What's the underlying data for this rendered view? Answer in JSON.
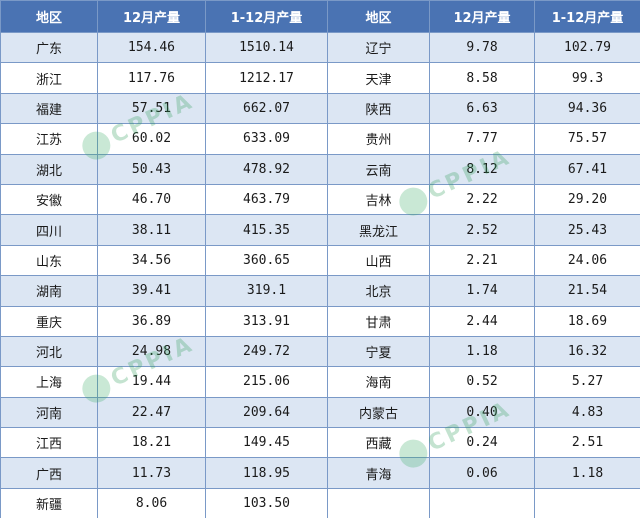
{
  "table": {
    "headers": [
      "地区",
      "12月产量",
      "1-12月产量",
      "地区",
      "12月产量",
      "1-12月产量"
    ],
    "rows": [
      [
        "广东",
        "154.46",
        "1510.14",
        "辽宁",
        "9.78",
        "102.79"
      ],
      [
        "浙江",
        "117.76",
        "1212.17",
        "天津",
        "8.58",
        "99.3"
      ],
      [
        "福建",
        "57.51",
        "662.07",
        "陕西",
        "6.63",
        "94.36"
      ],
      [
        "江苏",
        "60.02",
        "633.09",
        "贵州",
        "7.77",
        "75.57"
      ],
      [
        "湖北",
        "50.43",
        "478.92",
        "云南",
        "8.12",
        "67.41"
      ],
      [
        "安徽",
        "46.70",
        "463.79",
        "吉林",
        "2.22",
        "29.20"
      ],
      [
        "四川",
        "38.11",
        "415.35",
        "黑龙江",
        "2.52",
        "25.43"
      ],
      [
        "山东",
        "34.56",
        "360.65",
        "山西",
        "2.21",
        "24.06"
      ],
      [
        "湖南",
        "39.41",
        "319.1",
        "北京",
        "1.74",
        "21.54"
      ],
      [
        "重庆",
        "36.89",
        "313.91",
        "甘肃",
        "2.44",
        "18.69"
      ],
      [
        "河北",
        "24.98",
        "249.72",
        "宁夏",
        "1.18",
        "16.32"
      ],
      [
        "上海",
        "19.44",
        "215.06",
        "海南",
        "0.52",
        "5.27"
      ],
      [
        "河南",
        "22.47",
        "209.64",
        "内蒙古",
        "0.40",
        "4.83"
      ],
      [
        "江西",
        "18.21",
        "149.45",
        "西藏",
        "0.24",
        "2.51"
      ],
      [
        "广西",
        "11.73",
        "118.95",
        "青海",
        "0.06",
        "1.18"
      ],
      [
        "新疆",
        "8.06",
        "103.50",
        "",
        "",
        ""
      ]
    ]
  },
  "watermark": {
    "text": "CPPIA"
  },
  "colors": {
    "header_bg": "#4a73b3",
    "stripe_bg": "#dce6f3",
    "border": "#7a99c7"
  }
}
